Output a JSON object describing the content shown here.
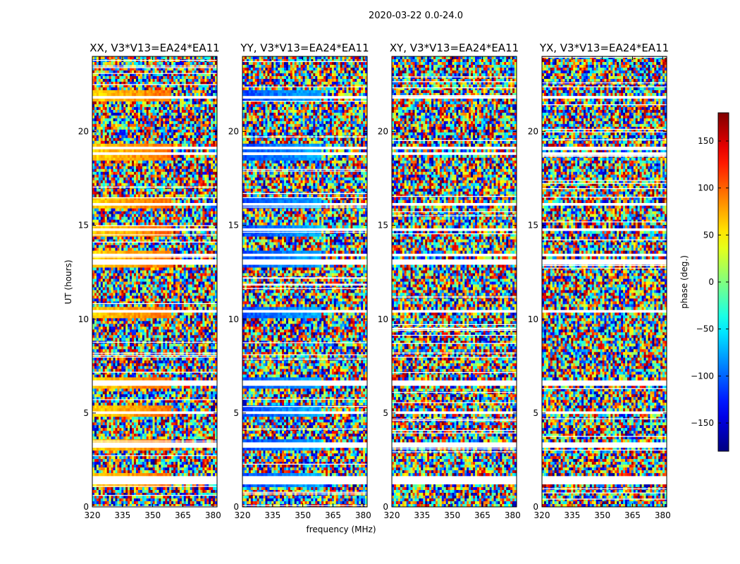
{
  "chart_data": {
    "type": "heatmap",
    "title": "2020-03-22 0.0-24.0",
    "xlabel": "frequency (MHz)",
    "ylabel": "UT (hours)",
    "xlim": [
      320,
      382
    ],
    "ylim": [
      0,
      24
    ],
    "x_ticks": [
      320,
      335,
      350,
      365,
      380
    ],
    "y_ticks": [
      0,
      5,
      10,
      15,
      20
    ],
    "panels": [
      {
        "title": "XX, V3*V13=EA24*EA11",
        "coherent_phase_deg": 60
      },
      {
        "title": "YY, V3*V13=EA24*EA11",
        "coherent_phase_deg": -110
      },
      {
        "title": "XY, V3*V13=EA24*EA11",
        "coherent_phase_deg": null
      },
      {
        "title": "YX, V3*V13=EA24*EA11",
        "coherent_phase_deg": null
      }
    ],
    "colorbar": {
      "label": "phase (deg.)",
      "range": [
        -180,
        180
      ],
      "ticks": [
        -150,
        -100,
        -50,
        0,
        50,
        100,
        150
      ],
      "colormap": "jet"
    },
    "flagged_rows_ut_hours": [
      21.85,
      19.1,
      18.8,
      16.15,
      14.75,
      13.4,
      13.05,
      10.4,
      6.6,
      5.05,
      3.3,
      1.5,
      1.35
    ]
  }
}
